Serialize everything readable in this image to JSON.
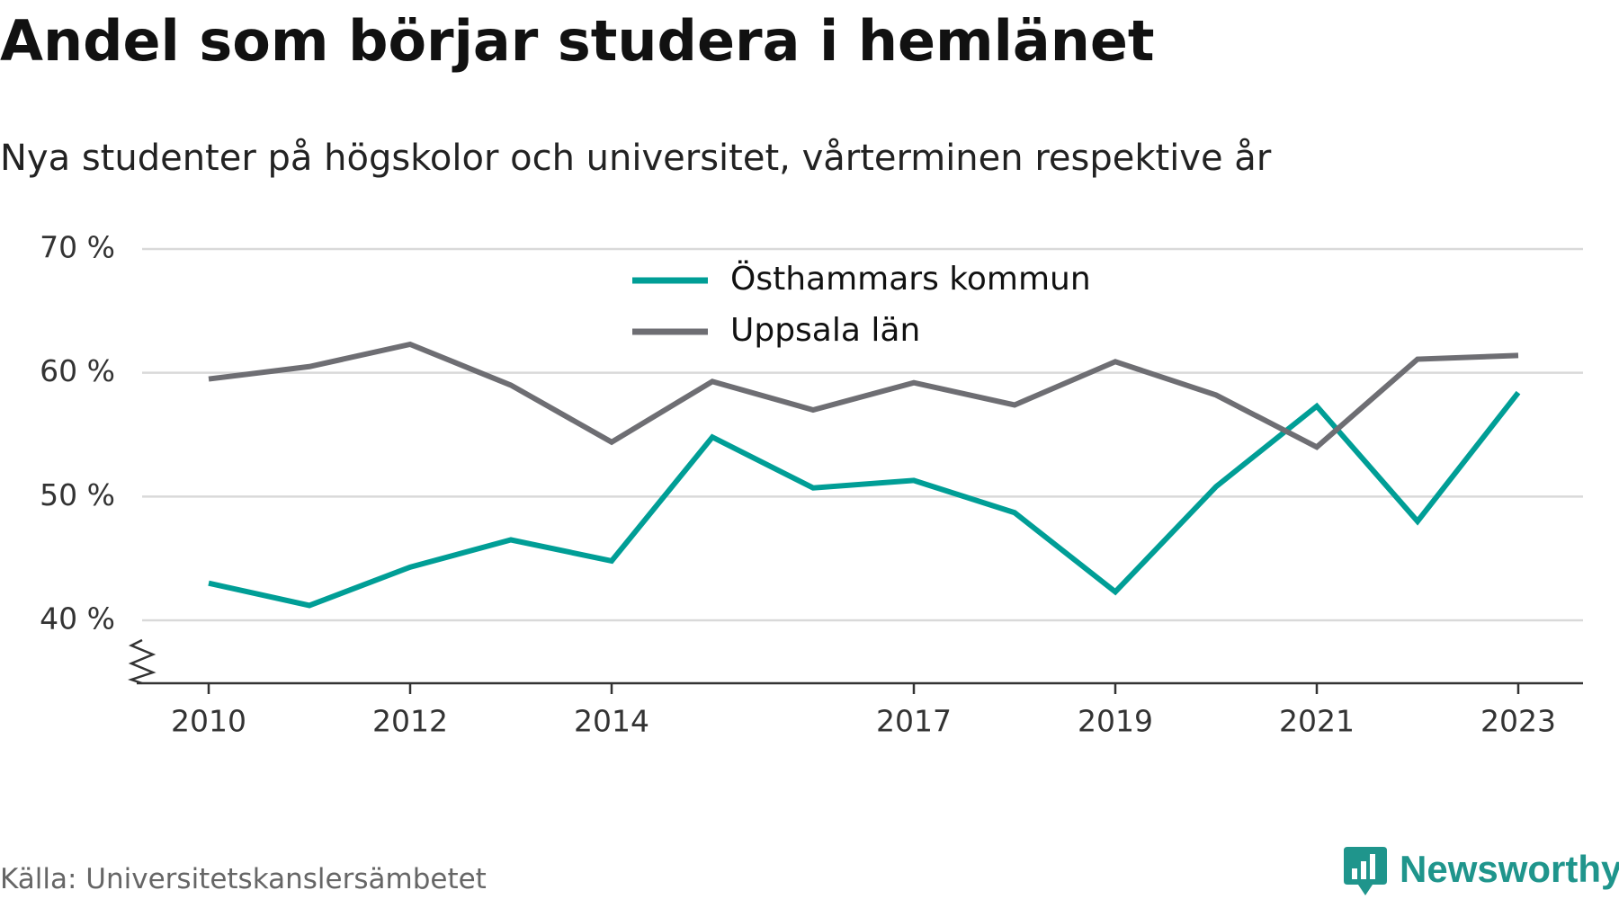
{
  "header": {
    "title": "Andel som börjar studera i hemlänet",
    "subtitle": "Nya studenter på högskolor och universitet, vårterminen respektive år"
  },
  "footer": {
    "source": "Källa: Universitetskanslersämbetet",
    "brand": "Newsworthy",
    "brand_color": "#1f958c"
  },
  "chart_data": {
    "type": "line",
    "x": [
      2010,
      2011,
      2012,
      2013,
      2014,
      2015,
      2016,
      2017,
      2018,
      2019,
      2020,
      2021,
      2022,
      2023
    ],
    "x_tick_values": [
      2010,
      2012,
      2014,
      2017,
      2019,
      2021,
      2023
    ],
    "x_tick_labels": [
      "2010",
      "2012",
      "2014",
      "2017",
      "2019",
      "2021",
      "2023"
    ],
    "y_tick_values": [
      40,
      50,
      60,
      70
    ],
    "y_tick_labels": [
      "40 %",
      "50 %",
      "60 %",
      "70 %"
    ],
    "ylim": [
      35,
      70
    ],
    "grid": true,
    "axis_break": true,
    "legend_position": "top-center",
    "series": [
      {
        "name": "Östhammars kommun",
        "color": "#009e96",
        "values": [
          43.0,
          41.2,
          44.3,
          46.5,
          44.8,
          54.8,
          50.7,
          51.3,
          48.7,
          42.3,
          50.8,
          57.3,
          48.0,
          58.4
        ]
      },
      {
        "name": "Uppsala län",
        "color": "#6e6e73",
        "values": [
          59.5,
          60.5,
          62.3,
          59.0,
          54.4,
          59.3,
          57.0,
          59.2,
          57.4,
          60.9,
          58.2,
          54.0,
          61.1,
          61.4
        ]
      }
    ]
  }
}
